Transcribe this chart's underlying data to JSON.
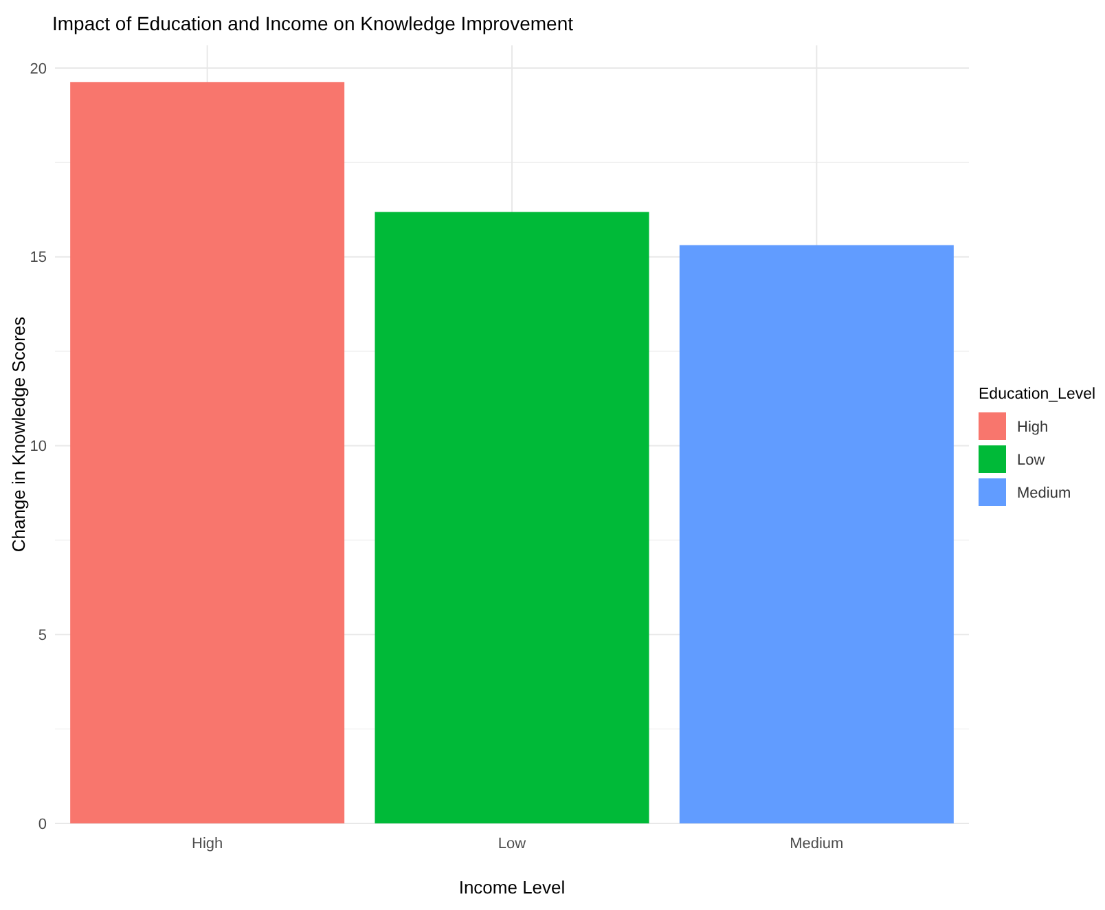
{
  "chart_data": {
    "type": "bar",
    "title": "Impact of Education and Income on Knowledge Improvement",
    "xlabel": "Income Level",
    "ylabel": "Change in Knowledge Scores",
    "legend_title": "Education_Level",
    "categories": [
      "High",
      "Low",
      "Medium"
    ],
    "stacked": true,
    "series": [
      {
        "name": "High",
        "color": "#f8766d",
        "values": [
          19.63,
          null,
          null
        ]
      },
      {
        "name": "Low",
        "color": "#00ba38",
        "values": [
          null,
          16.19,
          null
        ]
      },
      {
        "name": "Medium",
        "color": "#619cff",
        "values": [
          null,
          null,
          15.31
        ]
      }
    ],
    "ylim": [
      0,
      20.6
    ],
    "yticks": [
      0,
      5,
      10,
      15,
      20
    ],
    "grid": true,
    "legend": "right"
  }
}
